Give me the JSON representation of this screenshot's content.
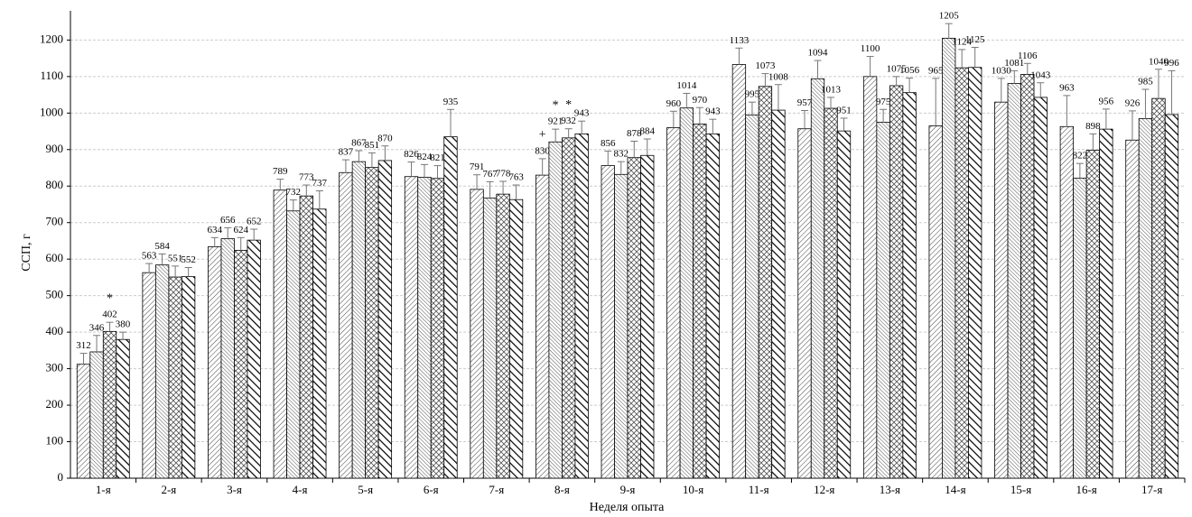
{
  "chart_data": {
    "type": "bar",
    "x_label": "Неделя опыта",
    "y_label": "ССП, г",
    "categories": [
      "1-я",
      "2-я",
      "3-я",
      "4-я",
      "5-я",
      "6-я",
      "7-я",
      "8-я",
      "9-я",
      "10-я",
      "11-я",
      "12-я",
      "13-я",
      "14-я",
      "15-я",
      "16-я",
      "17-я"
    ],
    "ylim": [
      0,
      1280
    ],
    "yticks": [
      0,
      100,
      200,
      300,
      400,
      500,
      600,
      700,
      800,
      900,
      1000,
      1100,
      1200
    ],
    "grid": true,
    "series": [
      {
        "pattern": "p1",
        "values": [
          312,
          563,
          634,
          789,
          837,
          826,
          791,
          830,
          856,
          960,
          1133,
          957,
          1100,
          965,
          1030,
          963,
          926
        ],
        "errors": [
          30,
          25,
          25,
          30,
          35,
          40,
          40,
          45,
          40,
          45,
          45,
          50,
          55,
          130,
          65,
          85,
          80
        ],
        "annotations": [
          null,
          null,
          null,
          null,
          null,
          null,
          null,
          "+",
          null,
          null,
          null,
          null,
          null,
          null,
          null,
          null,
          null
        ]
      },
      {
        "pattern": "p2",
        "values": [
          346,
          584,
          656,
          732,
          867,
          824,
          767,
          921,
          832,
          1014,
          995,
          1094,
          975,
          1205,
          1081,
          822,
          985
        ],
        "errors": [
          45,
          30,
          30,
          30,
          30,
          35,
          45,
          35,
          35,
          40,
          35,
          50,
          35,
          40,
          35,
          40,
          80
        ],
        "annotations": [
          null,
          null,
          null,
          null,
          null,
          null,
          null,
          "*",
          null,
          null,
          null,
          null,
          null,
          null,
          null,
          null,
          null
        ]
      },
      {
        "pattern": "p3",
        "values": [
          402,
          551,
          624,
          773,
          851,
          821,
          778,
          932,
          878,
          970,
          1073,
          1013,
          1075,
          1124,
          1106,
          898,
          1040
        ],
        "errors": [
          25,
          30,
          35,
          30,
          40,
          35,
          35,
          25,
          45,
          45,
          35,
          30,
          25,
          50,
          30,
          45,
          80
        ],
        "annotations": [
          "*",
          null,
          null,
          null,
          null,
          null,
          null,
          "*",
          null,
          null,
          null,
          null,
          null,
          null,
          null,
          null,
          null
        ]
      },
      {
        "pattern": "p4",
        "values": [
          380,
          552,
          652,
          737,
          870,
          935,
          763,
          943,
          884,
          943,
          1008,
          951,
          1056,
          1125,
          1043,
          956,
          996
        ],
        "errors": [
          20,
          25,
          30,
          50,
          40,
          75,
          40,
          35,
          45,
          40,
          70,
          35,
          40,
          55,
          40,
          55,
          120
        ],
        "annotations": [
          null,
          null,
          null,
          null,
          null,
          null,
          null,
          null,
          null,
          null,
          null,
          null,
          null,
          null,
          null,
          null,
          null
        ]
      }
    ]
  }
}
